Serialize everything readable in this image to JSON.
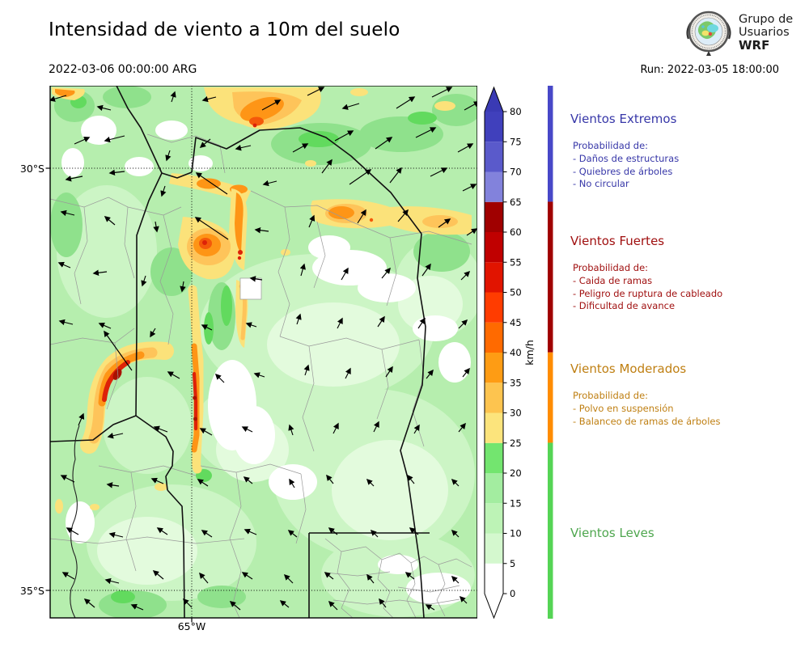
{
  "header": {
    "title": "Intensidad de viento a 10m del suelo",
    "valid_time": "2022-03-06 00:00:00 ARG",
    "run_label": "Run: 2022-03-05 18:00:00",
    "logo": {
      "line1": "Grupo de",
      "line2": "Usuarios",
      "line3": "WRF"
    }
  },
  "map": {
    "lat_labels": [
      "30°S",
      "35°S"
    ],
    "lon_labels": [
      "65°W"
    ]
  },
  "colorbar": {
    "unit": "km/h",
    "ticks": [
      0,
      5,
      10,
      15,
      20,
      25,
      30,
      35,
      40,
      45,
      50,
      55,
      60,
      65,
      70,
      75,
      80
    ],
    "segment_colors_low_to_high": [
      "#ffffff",
      "#d4f8ce",
      "#bdf3b6",
      "#a3eda0",
      "#73e56f",
      "#fce47c",
      "#fdc44f",
      "#fe9c14",
      "#ff6a00",
      "#ff3c00",
      "#e11400",
      "#c00000",
      "#a00000",
      "#8282dc",
      "#5a5acb",
      "#4040bc"
    ],
    "over_arrow_color": "#3a3ab4",
    "under_arrow_color": "#ffffff"
  },
  "legend": {
    "sections": [
      {
        "title": "Vientos Extremos",
        "text_color": "#3737a8",
        "bar_color": "#4848c8",
        "range_kmh": [
          65,
          85
        ],
        "lines": [
          "Probabilidad de:",
          "- Daños de estructuras",
          "- Quiebres de árboles",
          "- No circular"
        ]
      },
      {
        "title": "Vientos Fuertes",
        "text_color": "#a01010",
        "bar_color": "#a00000",
        "range_kmh": [
          40,
          65
        ],
        "lines": [
          "Probabilidad de:",
          "- Caida de ramas",
          "- Peligro de ruptura de cableado",
          "- Dificultad de avance"
        ]
      },
      {
        "title": "Vientos Moderados",
        "text_color": "#bf7f12",
        "bar_color": "#ff8c00",
        "range_kmh": [
          25,
          40
        ],
        "lines": [
          "Probabilidad de:",
          "- Polvo en suspensión",
          "- Balanceo de ramas de árboles"
        ]
      },
      {
        "title": "Vientos Leves",
        "text_color": "#4ea64e",
        "bar_color": "#55d455",
        "range_kmh": [
          0,
          25
        ],
        "lines": []
      }
    ]
  },
  "chart_data": {
    "type": "heatmap",
    "title": "Intensidad de viento a 10m del suelo",
    "valid_time": "2022-03-06 00:00:00 ARG",
    "model_run": "Run: 2022-03-05 18:00:00",
    "variable": "Wind intensity at 10 m above ground",
    "unit": "km/h",
    "colorbar_range": [
      0,
      80
    ],
    "colorbar_tick_interval": 5,
    "colorbar_colors_low_to_high": [
      "#ffffff",
      "#d4f8ce",
      "#bdf3b6",
      "#a3eda0",
      "#73e56f",
      "#fce47c",
      "#fdc44f",
      "#fe9c14",
      "#ff6a00",
      "#ff3c00",
      "#e11400",
      "#c00000",
      "#a00000",
      "#8282dc",
      "#5a5acb",
      "#4040bc"
    ],
    "lat_axis_ticks": [
      "30°S",
      "35°S"
    ],
    "lon_axis_ticks": [
      "65°W"
    ],
    "grid": "dotted graticule lines at 30°S, 35°S and 65°W",
    "overlay": "wind direction quiver arrows and province/department boundaries",
    "wind_categories": [
      {
        "name": "Vientos Leves",
        "min_kmh": 0,
        "max_kmh": 25,
        "color": "#55d455"
      },
      {
        "name": "Vientos Moderados",
        "min_kmh": 25,
        "max_kmh": 40,
        "color": "#ff8c00"
      },
      {
        "name": "Vientos Fuertes",
        "min_kmh": 40,
        "max_kmh": 65,
        "color": "#a00000"
      },
      {
        "name": "Vientos Extremos",
        "min_kmh": 65,
        "max_kmh": 85,
        "color": "#4848c8"
      }
    ],
    "legend_position": "right"
  }
}
